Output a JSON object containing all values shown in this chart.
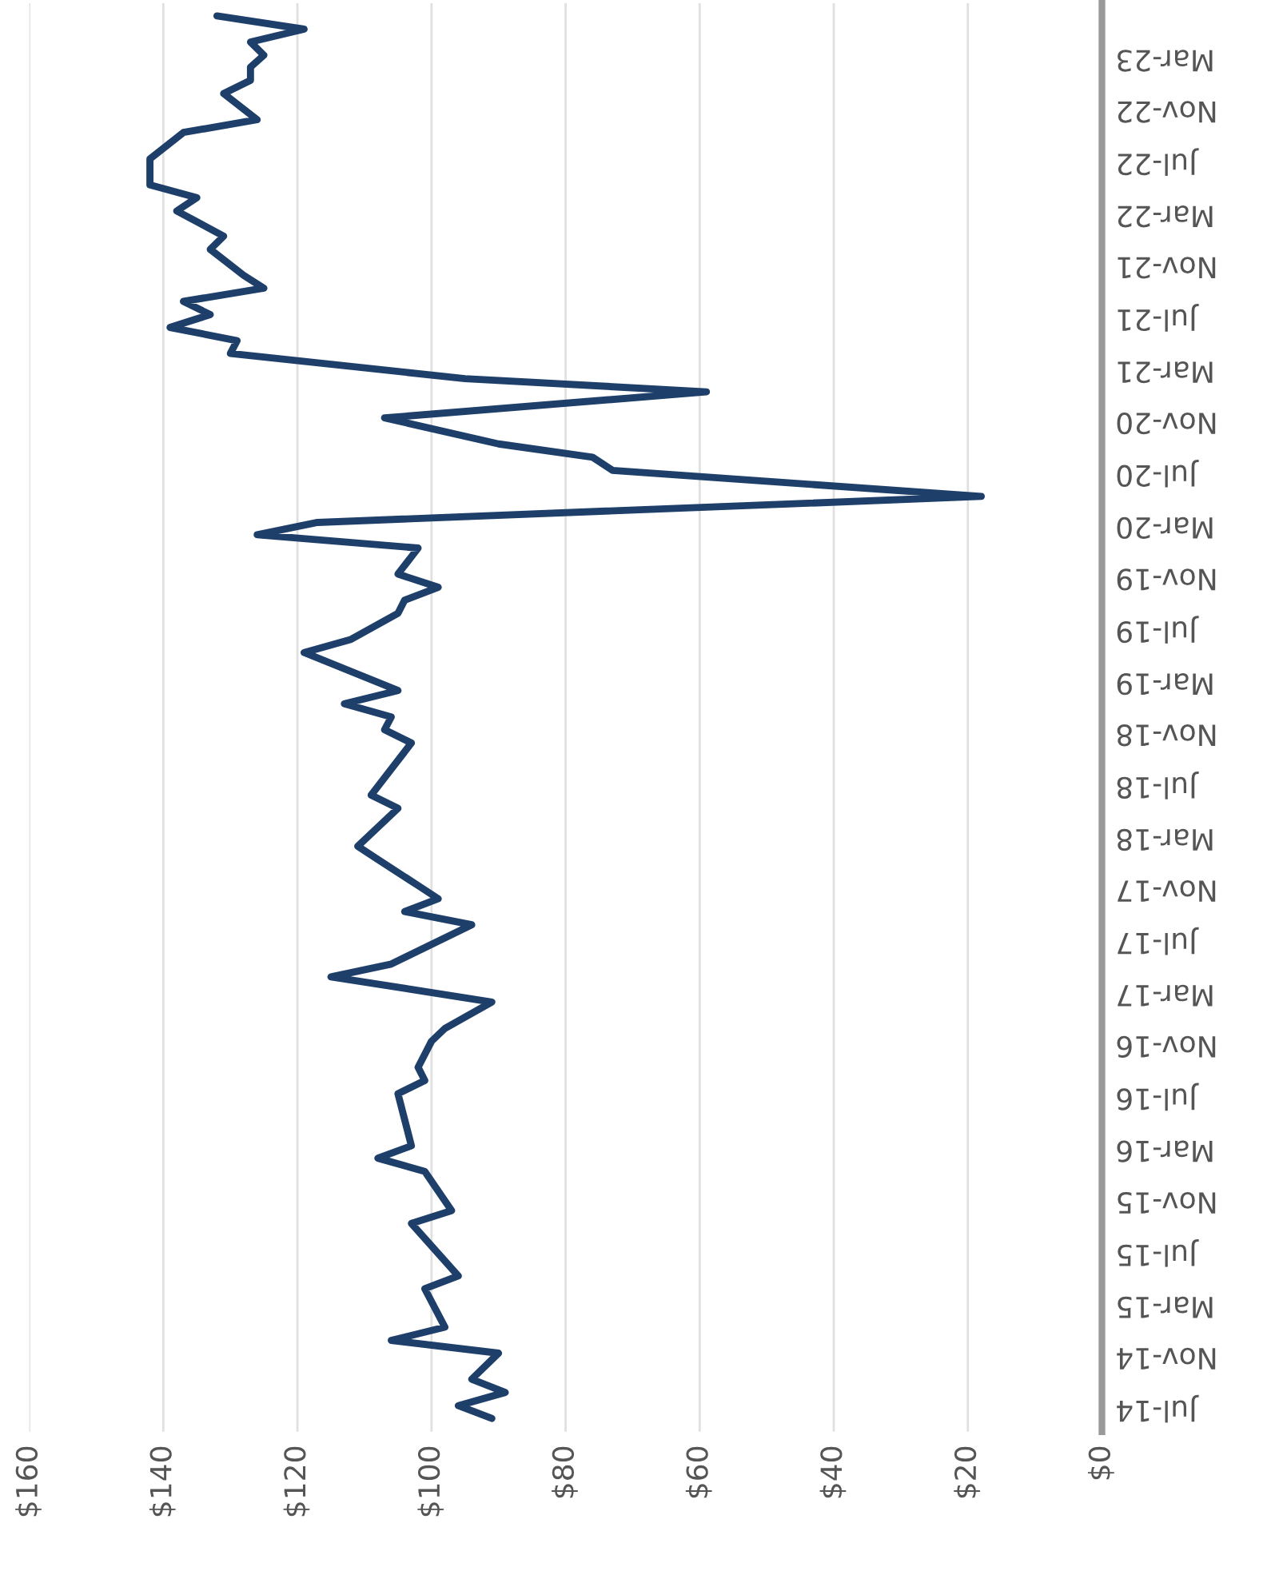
{
  "chart_data": {
    "type": "line",
    "orientation": "horizontal",
    "x": [
      "2014-06",
      "2014-07",
      "2014-08",
      "2014-09",
      "2014-11",
      "2014-12",
      "2015-01",
      "2015-04",
      "2015-05",
      "2015-09",
      "2015-10",
      "2016-01",
      "2016-02",
      "2016-03",
      "2016-07",
      "2016-08",
      "2016-09",
      "2016-11",
      "2016-12",
      "2017-02",
      "2017-04",
      "2017-05",
      "2017-08",
      "2017-09",
      "2017-10",
      "2017-11",
      "2018-01",
      "2018-02",
      "2018-05",
      "2018-06",
      "2018-10",
      "2018-11",
      "2018-12",
      "2019-01",
      "2019-02",
      "2019-05",
      "2019-06",
      "2019-08",
      "2019-09",
      "2019-10",
      "2019-11",
      "2020-01",
      "2020-02",
      "2020-03",
      "2020-05",
      "2020-07",
      "2020-08",
      "2020-09",
      "2020-11",
      "2021-01",
      "2021-02",
      "2021-04",
      "2021-05",
      "2021-06",
      "2021-07",
      "2021-08",
      "2021-09",
      "2021-10",
      "2021-12",
      "2022-01",
      "2022-03",
      "2022-04",
      "2022-05",
      "2022-07",
      "2022-09",
      "2022-10",
      "2022-12",
      "2023-01",
      "2023-02",
      "2023-03",
      "2023-04",
      "2023-05",
      "2023-06"
    ],
    "series": [
      {
        "color": "#1f3f6b",
        "values": [
          91,
          96,
          89,
          94,
          90,
          106,
          98,
          101,
          96,
          103,
          97,
          101,
          108,
          103,
          105,
          101,
          102,
          100,
          98,
          91,
          115,
          106,
          94,
          104,
          99,
          102,
          108,
          111,
          105,
          109,
          103,
          107,
          106,
          113,
          105,
          119,
          112,
          105,
          104,
          99,
          105,
          102,
          126,
          117,
          18,
          73,
          76,
          90,
          107,
          59,
          95,
          130,
          129,
          139,
          133,
          137,
          125,
          128,
          133,
          131,
          138,
          135,
          142,
          142,
          137,
          126,
          131,
          127,
          127,
          125,
          127,
          119,
          132
        ]
      }
    ],
    "xlim": [
      160,
      0
    ],
    "xticks": [
      {
        "value": 160,
        "label": "$160"
      },
      {
        "value": 140,
        "label": "$140"
      },
      {
        "value": 120,
        "label": "$120"
      },
      {
        "value": 100,
        "label": "$100"
      },
      {
        "value": 80,
        "label": "$80"
      },
      {
        "value": 60,
        "label": "$60"
      },
      {
        "value": 40,
        "label": "$40"
      },
      {
        "value": 20,
        "label": "$20"
      },
      {
        "value": 0,
        "label": "$0"
      }
    ],
    "ylim": [
      "2014-05",
      "2023-07"
    ],
    "yticks": [
      {
        "value": "2014-07",
        "label": "Jul-14"
      },
      {
        "value": "2014-11",
        "label": "Nov-14"
      },
      {
        "value": "2015-03",
        "label": "Mar-15"
      },
      {
        "value": "2015-07",
        "label": "Jul-15"
      },
      {
        "value": "2015-11",
        "label": "Nov-15"
      },
      {
        "value": "2016-03",
        "label": "Mar-16"
      },
      {
        "value": "2016-07",
        "label": "Jul-16"
      },
      {
        "value": "2016-11",
        "label": "Nov-16"
      },
      {
        "value": "2017-03",
        "label": "Mar-17"
      },
      {
        "value": "2017-07",
        "label": "Jul-17"
      },
      {
        "value": "2017-11",
        "label": "Nov-17"
      },
      {
        "value": "2018-03",
        "label": "Mar-18"
      },
      {
        "value": "2018-07",
        "label": "Jul-18"
      },
      {
        "value": "2018-11",
        "label": "Nov-18"
      },
      {
        "value": "2019-03",
        "label": "Mar-19"
      },
      {
        "value": "2019-07",
        "label": "Jul-19"
      },
      {
        "value": "2019-11",
        "label": "Nov-19"
      },
      {
        "value": "2020-03",
        "label": "Mar-20"
      },
      {
        "value": "2020-07",
        "label": "Jul-20"
      },
      {
        "value": "2020-11",
        "label": "Nov-20"
      },
      {
        "value": "2021-03",
        "label": "Mar-21"
      },
      {
        "value": "2021-07",
        "label": "Jul-21"
      },
      {
        "value": "2021-11",
        "label": "Nov-21"
      },
      {
        "value": "2022-03",
        "label": "Mar-22"
      },
      {
        "value": "2022-07",
        "label": "Jul-22"
      },
      {
        "value": "2022-11",
        "label": "Nov-22"
      },
      {
        "value": "2023-03",
        "label": "Mar-23"
      }
    ],
    "grid": "x",
    "legend": false,
    "marker": "none",
    "line_style": "solid"
  }
}
